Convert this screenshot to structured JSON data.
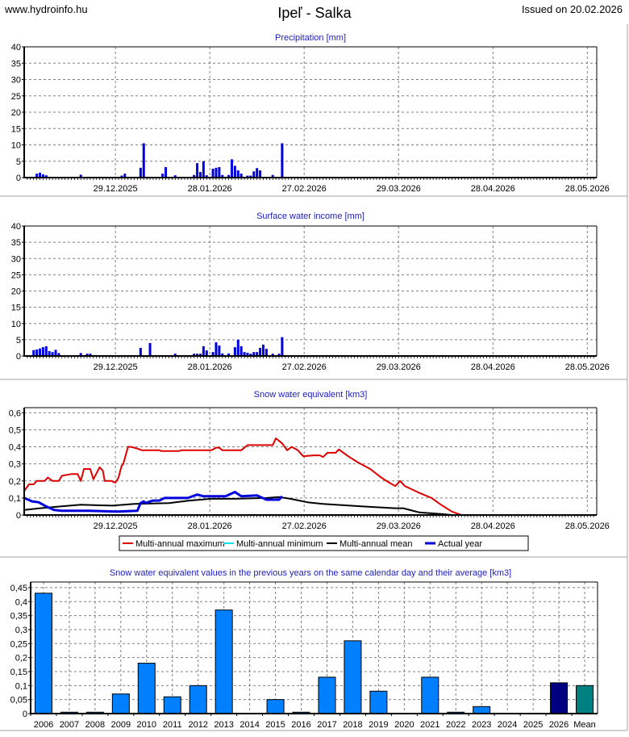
{
  "header": {
    "site": "www.hydroinfo.hu",
    "title": "Ipeľ - Salka",
    "issued": "Issued on 20.02.2026"
  },
  "colors": {
    "bar_blue": "#0000dd",
    "max": "#dd0000",
    "min": "#00e5ee",
    "mean": "#000000",
    "actual": "#0000dd",
    "year_bar": "#0080ff",
    "current_bar": "#000080",
    "mean_bar": "#008080",
    "title": "#2020c0"
  },
  "chart_data": [
    {
      "type": "bar",
      "title": "Precipitation [mm]",
      "x_unit_days_range": [
        0,
        182
      ],
      "xticks": [
        {
          "day": 29,
          "label": "29.12.2025"
        },
        {
          "day": 59,
          "label": "28.01.2026"
        },
        {
          "day": 89,
          "label": "27.02.2026"
        },
        {
          "day": 119,
          "label": "29.03.2026"
        },
        {
          "day": 149,
          "label": "28.04.2026"
        },
        {
          "day": 179,
          "label": "28.05.2026"
        }
      ],
      "ylim": [
        0,
        40
      ],
      "yticks": [
        {
          "v": 0,
          "label": "0"
        },
        {
          "v": 5,
          "label": "5"
        },
        {
          "v": 10,
          "label": "10"
        },
        {
          "v": 15,
          "label": "15"
        },
        {
          "v": 20,
          "label": "20"
        },
        {
          "v": 25,
          "label": "25"
        },
        {
          "v": 30,
          "label": "30"
        },
        {
          "v": 35,
          "label": "35"
        },
        {
          "v": 40,
          "label": "40"
        }
      ],
      "points": [
        [
          4,
          1.2
        ],
        [
          5,
          1.5
        ],
        [
          6,
          1.0
        ],
        [
          7,
          0.7
        ],
        [
          18,
          0.9
        ],
        [
          31,
          0.6
        ],
        [
          32,
          1.2
        ],
        [
          37,
          3.0
        ],
        [
          38,
          10.5
        ],
        [
          44,
          1.2
        ],
        [
          45,
          3.2
        ],
        [
          48,
          0.7
        ],
        [
          54,
          0.8
        ],
        [
          55,
          4.4
        ],
        [
          56,
          1.7
        ],
        [
          57,
          5.0
        ],
        [
          58,
          0.7
        ],
        [
          60,
          2.7
        ],
        [
          61,
          3.0
        ],
        [
          62,
          3.2
        ],
        [
          63,
          0.8
        ],
        [
          65,
          0.8
        ],
        [
          66,
          5.6
        ],
        [
          67,
          3.6
        ],
        [
          68,
          2.2
        ],
        [
          69,
          1.2
        ],
        [
          71,
          0.6
        ],
        [
          72,
          0.6
        ],
        [
          73,
          1.9
        ],
        [
          74,
          2.9
        ],
        [
          75,
          2.2
        ],
        [
          79,
          0.8
        ],
        [
          82,
          10.5
        ]
      ]
    },
    {
      "type": "bar",
      "title": "Surface water income [mm]",
      "x_unit_days_range": [
        0,
        182
      ],
      "xticks": [
        {
          "day": 29,
          "label": "29.12.2025"
        },
        {
          "day": 59,
          "label": "28.01.2026"
        },
        {
          "day": 89,
          "label": "27.02.2026"
        },
        {
          "day": 119,
          "label": "29.03.2026"
        },
        {
          "day": 149,
          "label": "28.04.2026"
        },
        {
          "day": 179,
          "label": "28.05.2026"
        }
      ],
      "ylim": [
        0,
        40
      ],
      "yticks": [
        {
          "v": 0,
          "label": "0"
        },
        {
          "v": 5,
          "label": "5"
        },
        {
          "v": 10,
          "label": "10"
        },
        {
          "v": 15,
          "label": "15"
        },
        {
          "v": 20,
          "label": "20"
        },
        {
          "v": 25,
          "label": "25"
        },
        {
          "v": 30,
          "label": "30"
        },
        {
          "v": 35,
          "label": "35"
        },
        {
          "v": 40,
          "label": "40"
        }
      ],
      "points": [
        [
          3,
          1.8
        ],
        [
          4,
          2.0
        ],
        [
          5,
          2.3
        ],
        [
          6,
          2.7
        ],
        [
          7,
          3.0
        ],
        [
          8,
          1.5
        ],
        [
          9,
          1.2
        ],
        [
          10,
          1.9
        ],
        [
          11,
          0.9
        ],
        [
          18,
          0.9
        ],
        [
          20,
          0.7
        ],
        [
          21,
          0.7
        ],
        [
          37,
          2.5
        ],
        [
          40,
          4.0
        ],
        [
          48,
          0.7
        ],
        [
          54,
          0.7
        ],
        [
          55,
          0.7
        ],
        [
          56,
          0.7
        ],
        [
          57,
          3.0
        ],
        [
          58,
          1.7
        ],
        [
          60,
          1.2
        ],
        [
          61,
          4.2
        ],
        [
          62,
          3.2
        ],
        [
          63,
          0.8
        ],
        [
          65,
          0.8
        ],
        [
          67,
          2.7
        ],
        [
          68,
          5.0
        ],
        [
          69,
          3.0
        ],
        [
          70,
          1.2
        ],
        [
          71,
          1.0
        ],
        [
          72,
          0.7
        ],
        [
          73,
          1.2
        ],
        [
          74,
          1.2
        ],
        [
          75,
          2.5
        ],
        [
          76,
          3.5
        ],
        [
          77,
          2.2
        ],
        [
          79,
          0.7
        ],
        [
          81,
          0.7
        ],
        [
          82,
          5.8
        ]
      ]
    },
    {
      "type": "line",
      "title": "Snow water equivalent [km3]",
      "x_unit_days_range": [
        0,
        182
      ],
      "xticks": [
        {
          "day": 29,
          "label": "29.12.2025"
        },
        {
          "day": 59,
          "label": "28.01.2026"
        },
        {
          "day": 89,
          "label": "27.02.2026"
        },
        {
          "day": 119,
          "label": "29.03.2026"
        },
        {
          "day": 149,
          "label": "28.04.2026"
        },
        {
          "day": 179,
          "label": "28.05.2026"
        }
      ],
      "ylim": [
        0,
        0.63
      ],
      "yticks": [
        {
          "v": 0,
          "label": "0"
        },
        {
          "v": 0.1,
          "label": "0,1"
        },
        {
          "v": 0.2,
          "label": "0,2"
        },
        {
          "v": 0.3,
          "label": "0,3"
        },
        {
          "v": 0.4,
          "label": "0,4"
        },
        {
          "v": 0.5,
          "label": "0,5"
        },
        {
          "v": 0.6,
          "label": "0,6"
        }
      ],
      "legend_position": "bottom",
      "series": [
        {
          "name": "Multi-annual maximum",
          "color_key": "max",
          "points": [
            [
              0,
              0.14
            ],
            [
              1.5,
              0.18
            ],
            [
              3,
              0.18
            ],
            [
              4,
              0.2
            ],
            [
              6.5,
              0.2
            ],
            [
              7.5,
              0.22
            ],
            [
              9,
              0.2
            ],
            [
              11,
              0.2
            ],
            [
              12,
              0.23
            ],
            [
              15,
              0.24
            ],
            [
              17,
              0.24
            ],
            [
              18,
              0.2
            ],
            [
              19,
              0.27
            ],
            [
              21,
              0.27
            ],
            [
              22,
              0.21
            ],
            [
              24,
              0.28
            ],
            [
              25,
              0.26
            ],
            [
              25.6,
              0.2
            ],
            [
              27.7,
              0.2
            ],
            [
              29,
              0.19
            ],
            [
              30,
              0.22
            ],
            [
              31,
              0.29
            ],
            [
              31.5,
              0.3
            ],
            [
              33,
              0.4
            ],
            [
              34,
              0.4
            ],
            [
              36,
              0.39
            ],
            [
              37.4,
              0.38
            ],
            [
              43,
              0.38
            ],
            [
              43.6,
              0.375
            ],
            [
              49,
              0.375
            ],
            [
              50,
              0.38
            ],
            [
              59.5,
              0.38
            ],
            [
              61,
              0.395
            ],
            [
              62,
              0.395
            ],
            [
              63,
              0.38
            ],
            [
              68,
              0.38
            ],
            [
              69,
              0.38
            ],
            [
              71,
              0.41
            ],
            [
              79,
              0.41
            ],
            [
              80,
              0.45
            ],
            [
              82,
              0.42
            ],
            [
              83.6,
              0.38
            ],
            [
              85,
              0.4
            ],
            [
              87,
              0.38
            ],
            [
              88.7,
              0.345
            ],
            [
              92,
              0.35
            ],
            [
              94,
              0.35
            ],
            [
              95,
              0.34
            ],
            [
              96.4,
              0.365
            ],
            [
              99,
              0.365
            ],
            [
              100,
              0.385
            ],
            [
              103,
              0.345
            ],
            [
              106,
              0.31
            ],
            [
              110,
              0.27
            ],
            [
              113.5,
              0.22
            ],
            [
              116,
              0.19
            ],
            [
              118,
              0.17
            ],
            [
              119.5,
              0.2
            ],
            [
              121,
              0.17
            ],
            [
              125.6,
              0.13
            ],
            [
              129.5,
              0.1
            ],
            [
              132.5,
              0.06
            ],
            [
              136,
              0.02
            ],
            [
              139,
              0.0
            ]
          ]
        },
        {
          "name": "Multi-annual minimum",
          "color_key": "min",
          "points": []
        },
        {
          "name": "Multi-annual mean",
          "color_key": "mean",
          "points": [
            [
              0,
              0.03
            ],
            [
              5,
              0.04
            ],
            [
              11.5,
              0.05
            ],
            [
              18,
              0.06
            ],
            [
              28,
              0.055
            ],
            [
              35,
              0.065
            ],
            [
              46,
              0.07
            ],
            [
              52.5,
              0.085
            ],
            [
              59.5,
              0.095
            ],
            [
              67,
              0.095
            ],
            [
              77,
              0.1
            ],
            [
              81,
              0.105
            ],
            [
              84.6,
              0.095
            ],
            [
              90,
              0.075
            ],
            [
              95,
              0.065
            ],
            [
              107.7,
              0.05
            ],
            [
              118,
              0.04
            ],
            [
              120.5,
              0.04
            ],
            [
              125.6,
              0.015
            ],
            [
              133,
              0.005
            ],
            [
              136,
              0.0
            ]
          ]
        },
        {
          "name": "Actual year",
          "color_key": "actual",
          "points": [
            [
              0,
              0.1
            ],
            [
              2.5,
              0.08
            ],
            [
              4.6,
              0.075
            ],
            [
              7,
              0.05
            ],
            [
              9.5,
              0.03
            ],
            [
              12,
              0.025
            ],
            [
              20.5,
              0.025
            ],
            [
              29.5,
              0.02
            ],
            [
              36,
              0.025
            ],
            [
              37,
              0.07
            ],
            [
              38,
              0.08
            ],
            [
              38.5,
              0.07
            ],
            [
              41,
              0.085
            ],
            [
              43,
              0.085
            ],
            [
              44.6,
              0.1
            ],
            [
              52,
              0.1
            ],
            [
              55,
              0.12
            ],
            [
              57,
              0.11
            ],
            [
              59.5,
              0.11
            ],
            [
              64,
              0.11
            ],
            [
              67,
              0.135
            ],
            [
              69,
              0.11
            ],
            [
              74,
              0.115
            ],
            [
              77,
              0.09
            ],
            [
              81,
              0.09
            ],
            [
              82,
              0.11
            ]
          ]
        }
      ]
    },
    {
      "type": "bar",
      "title": "Snow water equivalent values in the previous years on the same calendar day and their average [km3]",
      "categories": [
        "2006",
        "2007",
        "2008",
        "2009",
        "2010",
        "2011",
        "2012",
        "2013",
        "2014",
        "2015",
        "2016",
        "2017",
        "2018",
        "2019",
        "2020",
        "2021",
        "2022",
        "2023",
        "2024",
        "2025",
        "2026",
        "Mean"
      ],
      "values": [
        0.43,
        0.005,
        0.005,
        0.07,
        0.18,
        0.06,
        0.1,
        0.37,
        0,
        0.05,
        0.005,
        0.13,
        0.26,
        0.08,
        0,
        0.13,
        0.005,
        0.025,
        0,
        0,
        0.11,
        0.1
      ],
      "ylim": [
        0,
        0.47
      ],
      "yticks": [
        {
          "v": 0,
          "label": "0"
        },
        {
          "v": 0.05,
          "label": "0,05"
        },
        {
          "v": 0.1,
          "label": "0,1"
        },
        {
          "v": 0.15,
          "label": "0,15"
        },
        {
          "v": 0.2,
          "label": "0,2"
        },
        {
          "v": 0.25,
          "label": "0,25"
        },
        {
          "v": 0.3,
          "label": "0,3"
        },
        {
          "v": 0.35,
          "label": "0,35"
        },
        {
          "v": 0.4,
          "label": "0,4"
        },
        {
          "v": 0.45,
          "label": "0,45"
        }
      ]
    }
  ]
}
